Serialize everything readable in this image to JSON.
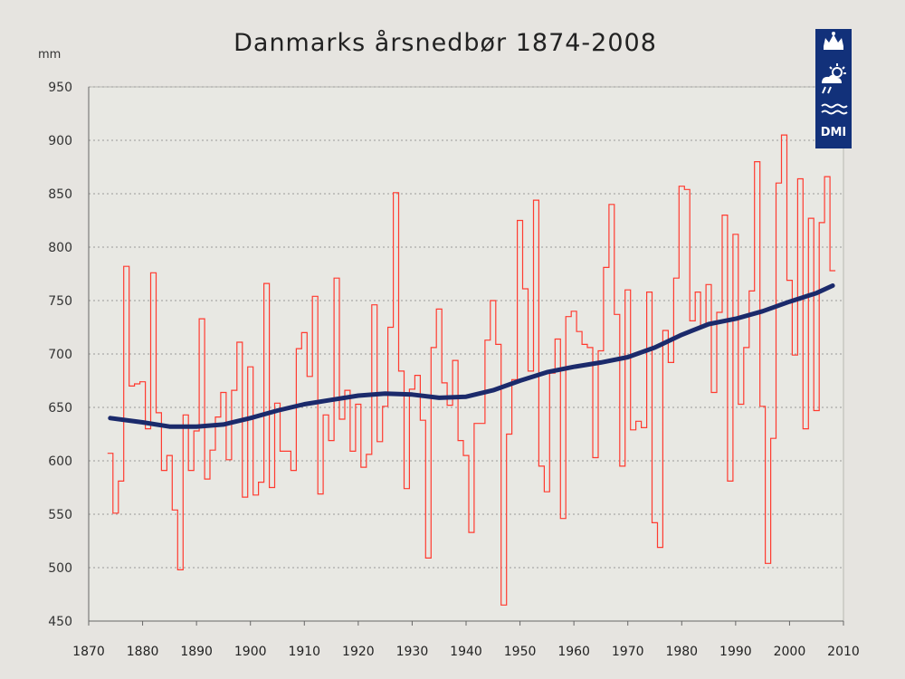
{
  "chart_data": {
    "type": "line",
    "title": "Danmarks årsnedbør 1874-2008",
    "ylabel": "mm",
    "xlabel": "",
    "xlim": [
      1870,
      2010
    ],
    "ylim": [
      450,
      950
    ],
    "xticks": [
      "1870",
      "1880",
      "1890",
      "1900",
      "1910",
      "1920",
      "1930",
      "1940",
      "1950",
      "1960",
      "1970",
      "1980",
      "1990",
      "2000",
      "2010"
    ],
    "yticks": [
      "450",
      "500",
      "550",
      "600",
      "650",
      "700",
      "750",
      "800",
      "850",
      "900",
      "950"
    ],
    "grid": "horizontal dotted",
    "logo": "DMI",
    "series": [
      {
        "type": "step",
        "color": "#ff3b30",
        "x": [
          1874,
          1875,
          1876,
          1877,
          1878,
          1879,
          1880,
          1881,
          1882,
          1883,
          1884,
          1885,
          1886,
          1887,
          1888,
          1889,
          1890,
          1891,
          1892,
          1893,
          1894,
          1895,
          1896,
          1897,
          1898,
          1899,
          1900,
          1901,
          1902,
          1903,
          1904,
          1905,
          1906,
          1907,
          1908,
          1909,
          1910,
          1911,
          1912,
          1913,
          1914,
          1915,
          1916,
          1917,
          1918,
          1919,
          1920,
          1921,
          1922,
          1923,
          1924,
          1925,
          1926,
          1927,
          1928,
          1929,
          1930,
          1931,
          1932,
          1933,
          1934,
          1935,
          1936,
          1937,
          1938,
          1939,
          1940,
          1941,
          1942,
          1943,
          1944,
          1945,
          1946,
          1947,
          1948,
          1949,
          1950,
          1951,
          1952,
          1953,
          1954,
          1955,
          1956,
          1957,
          1958,
          1959,
          1960,
          1961,
          1962,
          1963,
          1964,
          1965,
          1966,
          1967,
          1968,
          1969,
          1970,
          1971,
          1972,
          1973,
          1974,
          1975,
          1976,
          1977,
          1978,
          1979,
          1980,
          1981,
          1982,
          1983,
          1984,
          1985,
          1986,
          1987,
          1988,
          1989,
          1990,
          1991,
          1992,
          1993,
          1994,
          1995,
          1996,
          1997,
          1998,
          1999,
          2000,
          2001,
          2002,
          2003,
          2004,
          2005,
          2006,
          2007,
          2008
        ],
        "values": [
          607,
          551,
          581,
          782,
          670,
          672,
          674,
          630,
          776,
          645,
          591,
          605,
          554,
          498,
          643,
          591,
          628,
          733,
          583,
          610,
          641,
          664,
          601,
          666,
          711,
          566,
          688,
          568,
          580,
          766,
          575,
          654,
          609,
          609,
          591,
          705,
          720,
          679,
          754,
          569,
          643,
          619,
          771,
          639,
          666,
          609,
          653,
          594,
          606,
          746,
          618,
          651,
          725,
          851,
          684,
          574,
          667,
          680,
          638,
          509,
          706,
          742,
          673,
          652,
          694,
          619,
          605,
          533,
          635,
          635,
          713,
          750,
          709,
          465,
          625,
          676,
          825,
          761,
          684,
          844,
          595,
          571,
          682,
          714,
          546,
          735,
          740,
          721,
          709,
          706,
          603,
          703,
          781,
          840,
          737,
          595,
          760,
          629,
          637,
          631,
          758,
          542,
          519,
          722,
          692,
          771,
          857,
          854,
          731,
          758,
          727,
          765,
          664,
          739,
          830,
          581,
          812,
          653,
          706,
          759,
          880,
          651,
          504,
          621,
          860,
          905,
          769,
          699,
          864,
          630,
          827,
          647,
          823,
          866,
          778
        ]
      },
      {
        "type": "smooth",
        "color": "#1b2a6b",
        "x": [
          1874,
          1880,
          1885,
          1890,
          1895,
          1900,
          1905,
          1910,
          1915,
          1920,
          1925,
          1930,
          1935,
          1940,
          1945,
          1950,
          1955,
          1960,
          1965,
          1970,
          1975,
          1980,
          1985,
          1990,
          1995,
          2000,
          2005,
          2008
        ],
        "values": [
          640,
          636,
          632,
          632,
          634,
          640,
          647,
          653,
          657,
          661,
          663,
          662,
          659,
          660,
          666,
          675,
          683,
          688,
          692,
          697,
          706,
          718,
          728,
          733,
          740,
          749,
          757,
          764
        ]
      }
    ]
  }
}
